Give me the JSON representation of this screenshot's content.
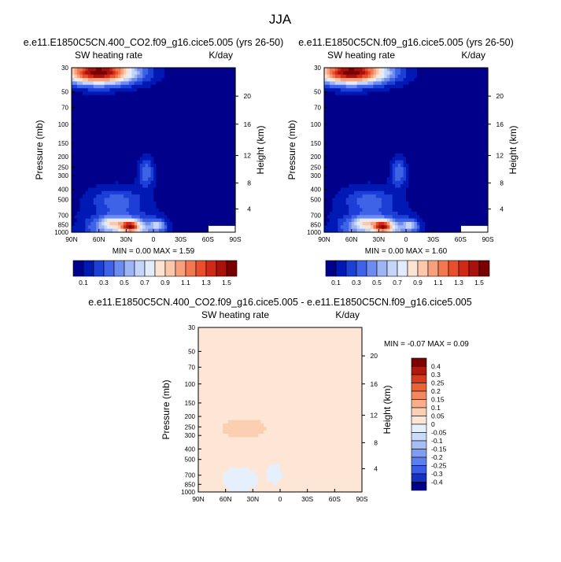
{
  "figure": {
    "title": "JJA"
  },
  "colors": {
    "palette": [
      "#00008a",
      "#0018b4",
      "#1c3fd6",
      "#3f63e6",
      "#6e8cf0",
      "#9db4f5",
      "#c4d5f8",
      "#e3ecfb",
      "#fde4d2",
      "#fbc8ab",
      "#f7a07e",
      "#f2784f",
      "#e94f2c",
      "#d02a17",
      "#a8110c",
      "#780000"
    ],
    "diff_palette": [
      "#00008a",
      "#1530c2",
      "#3b5ce6",
      "#5c7ff0",
      "#7f9df3",
      "#a6bdf6",
      "#cadaf9",
      "#e6effc",
      "#fde6d6",
      "#fbcfb2",
      "#f8ae8a",
      "#f28860",
      "#ec6136",
      "#d83a1c",
      "#b0170d",
      "#7c0000"
    ]
  },
  "chart_data": [
    {
      "type": "heatmap",
      "title": "e.e11.E1850C5CN.400_CO2.f09_g16.cice5.005 (yrs 26-50)",
      "left_label": "SW heating rate",
      "right_label": "K/day",
      "xlabel": "",
      "ylabel": "Pressure (mb)",
      "y2label": "Height (km)",
      "x_ticks": [
        "90N",
        "60N",
        "30N",
        "0",
        "30S",
        "60S",
        "90S"
      ],
      "y_ticks": [
        "30",
        "50",
        "70",
        "100",
        "150",
        "200",
        "250",
        "300",
        "400",
        "500",
        "700",
        "850",
        "1000"
      ],
      "y2_ticks": [
        "20",
        "16",
        "12",
        "8",
        "4"
      ],
      "xlim": [
        90,
        -90
      ],
      "ylim": [
        1000,
        30
      ],
      "stats": "MIN =   0.00  MAX =   1.59",
      "colorbar_labels": [
        "0.1",
        "0.3",
        "0.5",
        "0.7",
        "0.9",
        "1.1",
        "1.3",
        "1.5"
      ],
      "min": 0.0,
      "max": 1.59
    },
    {
      "type": "heatmap",
      "title": "e.e11.E1850C5CN.f09_g16.cice5.005 (yrs 26-50)",
      "left_label": "SW heating rate",
      "right_label": "K/day",
      "xlabel": "",
      "ylabel": "Pressure (mb)",
      "y2label": "Height (km)",
      "x_ticks": [
        "90N",
        "60N",
        "30N",
        "0",
        "30S",
        "60S",
        "90S"
      ],
      "y_ticks": [
        "30",
        "50",
        "70",
        "100",
        "150",
        "200",
        "250",
        "300",
        "400",
        "500",
        "700",
        "850",
        "1000"
      ],
      "y2_ticks": [
        "20",
        "16",
        "12",
        "8",
        "4"
      ],
      "xlim": [
        90,
        -90
      ],
      "ylim": [
        1000,
        30
      ],
      "stats": "MIN =   0.00  MAX =   1.60",
      "colorbar_labels": [
        "0.1",
        "0.3",
        "0.5",
        "0.7",
        "0.9",
        "1.1",
        "1.3",
        "1.5"
      ],
      "min": 0.0,
      "max": 1.6
    },
    {
      "type": "heatmap",
      "title": "e.e11.E1850C5CN.400_CO2.f09_g16.cice5.005 - e.e11.E1850C5CN.f09_g16.cice5.005",
      "left_label": "SW heating rate",
      "right_label": "K/day",
      "xlabel": "",
      "ylabel": "Pressure (mb)",
      "y2label": "Height (km)",
      "x_ticks": [
        "90N",
        "60N",
        "30N",
        "0",
        "30S",
        "60S",
        "90S"
      ],
      "y_ticks": [
        "30",
        "50",
        "70",
        "100",
        "150",
        "200",
        "250",
        "300",
        "400",
        "500",
        "700",
        "850",
        "1000"
      ],
      "y2_ticks": [
        "20",
        "16",
        "12",
        "8",
        "4"
      ],
      "xlim": [
        90,
        -90
      ],
      "ylim": [
        1000,
        30
      ],
      "stats": "MIN =  -0.07  MAX =   0.09",
      "colorbar_labels": [
        "0.4",
        "0.3",
        "0.25",
        "0.2",
        "0.15",
        "0.1",
        "0.05",
        "0",
        "-0.05",
        "-0.1",
        "-0.15",
        "-0.2",
        "-0.25",
        "-0.3",
        "-0.4"
      ],
      "min": -0.07,
      "max": 0.09
    }
  ]
}
